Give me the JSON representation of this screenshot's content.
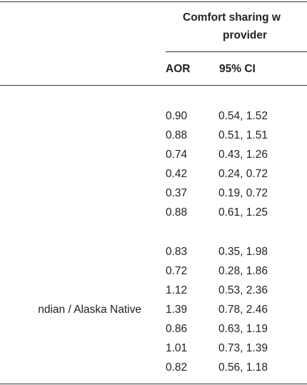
{
  "header": {
    "title_lines": [
      "Comfort sharing w",
      "provider"
    ],
    "columns": [
      "AOR",
      "95% CI"
    ]
  },
  "groups": [
    {
      "rows": [
        {
          "aor": "0.90",
          "ci": "0.54, 1.52"
        },
        {
          "aor": "0.88",
          "ci": "0.51, 1.51"
        },
        {
          "aor": "0.74",
          "ci": "0.43, 1.26"
        },
        {
          "aor": "0.42",
          "ci": "0.24, 0.72"
        },
        {
          "aor": "0.37",
          "ci": "0.19, 0.72"
        },
        {
          "aor": "0.88",
          "ci": "0.61, 1.25"
        }
      ]
    },
    {
      "rows": [
        {
          "aor": "0.83",
          "ci": "0.35, 1.98"
        },
        {
          "aor": "0.72",
          "ci": "0.28, 1.86"
        },
        {
          "aor": "1.12",
          "ci": "0.53, 2.36"
        },
        {
          "label": "ndian / Alaska Native",
          "aor": "1.39",
          "ci": "0.78, 2.46"
        },
        {
          "aor": "0.86",
          "ci": "0.63, 1.19"
        },
        {
          "aor": "1.01",
          "ci": "0.73, 1.39"
        },
        {
          "aor": "0.82",
          "ci": "0.56, 1.18"
        }
      ]
    }
  ]
}
